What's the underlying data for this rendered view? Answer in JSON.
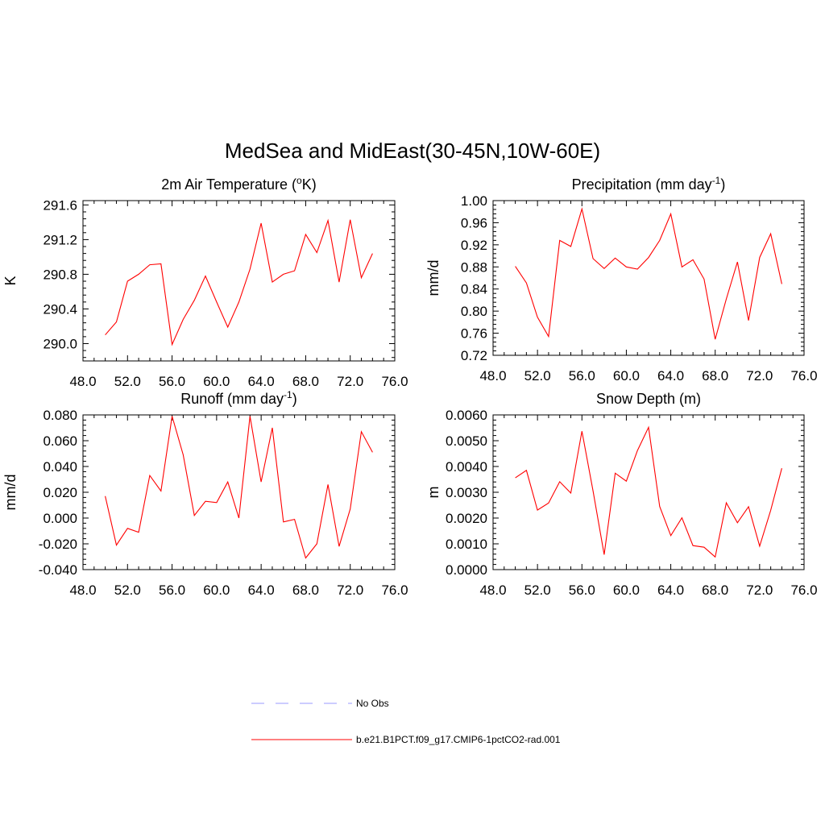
{
  "figure": {
    "title": "MedSea and MidEast(30-45N,10W-60E)"
  },
  "legend": {
    "entries": [
      {
        "label": "No Obs",
        "color": "#9999ff",
        "dash": true
      },
      {
        "label": "b.e21.B1PCT.f09_g17.CMIP6-1pctCO2-rad.001",
        "color": "#ff0000",
        "dash": false
      }
    ]
  },
  "colors": {
    "series": "#ff0000",
    "axis": "#000000",
    "noobs": "#9999ff"
  },
  "chart_data": [
    {
      "type": "line",
      "title": "2m Air Temperature (",
      "title_sup": "o",
      "title_after": "K)",
      "ylabel": "K",
      "xlim": [
        48,
        76
      ],
      "ylim": [
        289.8,
        291.65
      ],
      "xticks": [
        "48.0",
        "52.0",
        "56.0",
        "60.0",
        "64.0",
        "68.0",
        "72.0",
        "76.0"
      ],
      "yticks": [
        "290.0",
        "290.4",
        "290.8",
        "291.2",
        "291.6"
      ],
      "series": [
        {
          "x": [
            50,
            51,
            52,
            53,
            54,
            55,
            56,
            57,
            58,
            59,
            60,
            61,
            62,
            63,
            64,
            65,
            66,
            67,
            68,
            69,
            70,
            71,
            72,
            73,
            74
          ],
          "values": [
            290.1,
            290.25,
            290.72,
            290.8,
            290.91,
            290.92,
            289.99,
            290.28,
            290.5,
            290.78,
            290.48,
            290.19,
            290.48,
            290.86,
            291.39,
            290.71,
            290.8,
            290.84,
            291.26,
            291.05,
            291.42,
            290.71,
            291.43,
            290.76,
            291.04
          ]
        }
      ]
    },
    {
      "type": "line",
      "title": "Precipitation (mm day",
      "title_sup": "-1",
      "title_after": ")",
      "ylabel": "mm/d",
      "xlim": [
        48,
        76
      ],
      "ylim": [
        0.72,
        1.0
      ],
      "xticks": [
        "48.0",
        "52.0",
        "56.0",
        "60.0",
        "64.0",
        "68.0",
        "72.0",
        "76.0"
      ],
      "yticks": [
        "0.72",
        "0.76",
        "0.80",
        "0.84",
        "0.88",
        "0.92",
        "0.96",
        "1.00"
      ],
      "series": [
        {
          "x": [
            50,
            51,
            52,
            53,
            54,
            55,
            56,
            57,
            58,
            59,
            60,
            61,
            62,
            63,
            64,
            65,
            66,
            67,
            68,
            69,
            70,
            71,
            72,
            73,
            74
          ],
          "values": [
            0.881,
            0.851,
            0.789,
            0.754,
            0.928,
            0.917,
            0.985,
            0.895,
            0.877,
            0.896,
            0.88,
            0.876,
            0.897,
            0.928,
            0.976,
            0.88,
            0.893,
            0.858,
            0.749,
            0.822,
            0.889,
            0.783,
            0.897,
            0.94,
            0.849
          ]
        }
      ]
    },
    {
      "type": "line",
      "title": "Runoff (mm day",
      "title_sup": "-1",
      "title_after": ")",
      "ylabel": "mm/d",
      "xlim": [
        48,
        76
      ],
      "ylim": [
        -0.04,
        0.08
      ],
      "xticks": [
        "48.0",
        "52.0",
        "56.0",
        "60.0",
        "64.0",
        "68.0",
        "72.0",
        "76.0"
      ],
      "yticks": [
        "-0.040",
        "-0.020",
        "0.000",
        "0.020",
        "0.040",
        "0.060",
        "0.080"
      ],
      "series": [
        {
          "x": [
            50,
            51,
            52,
            53,
            54,
            55,
            56,
            57,
            58,
            59,
            60,
            61,
            62,
            63,
            64,
            65,
            66,
            67,
            68,
            69,
            70,
            71,
            72,
            73,
            74
          ],
          "values": [
            0.017,
            -0.021,
            -0.008,
            -0.011,
            0.033,
            0.021,
            0.079,
            0.049,
            0.002,
            0.013,
            0.012,
            0.028,
            0.0,
            0.079,
            0.028,
            0.07,
            -0.003,
            -0.001,
            -0.031,
            -0.02,
            0.026,
            -0.022,
            0.007,
            0.067,
            0.051
          ]
        }
      ]
    },
    {
      "type": "line",
      "title": "Snow Depth (m)",
      "title_sup": "",
      "title_after": "",
      "ylabel": "m",
      "xlim": [
        48,
        76
      ],
      "ylim": [
        0.0,
        0.006
      ],
      "xticks": [
        "48.0",
        "52.0",
        "56.0",
        "60.0",
        "64.0",
        "68.0",
        "72.0",
        "76.0"
      ],
      "yticks": [
        "0.0000",
        "0.0010",
        "0.0020",
        "0.0030",
        "0.0040",
        "0.0050",
        "0.0060"
      ],
      "series": [
        {
          "x": [
            50,
            51,
            52,
            53,
            54,
            55,
            56,
            57,
            58,
            59,
            60,
            61,
            62,
            63,
            64,
            65,
            66,
            67,
            68,
            69,
            70,
            71,
            72,
            73,
            74
          ],
          "values": [
            0.00356,
            0.00385,
            0.00231,
            0.00258,
            0.00341,
            0.00297,
            0.00537,
            0.00305,
            0.00058,
            0.00374,
            0.00343,
            0.00462,
            0.00552,
            0.00245,
            0.00132,
            0.00201,
            0.00093,
            0.00087,
            0.00049,
            0.00259,
            0.00182,
            0.00244,
            0.00091,
            0.0023,
            0.00393
          ]
        }
      ]
    }
  ]
}
